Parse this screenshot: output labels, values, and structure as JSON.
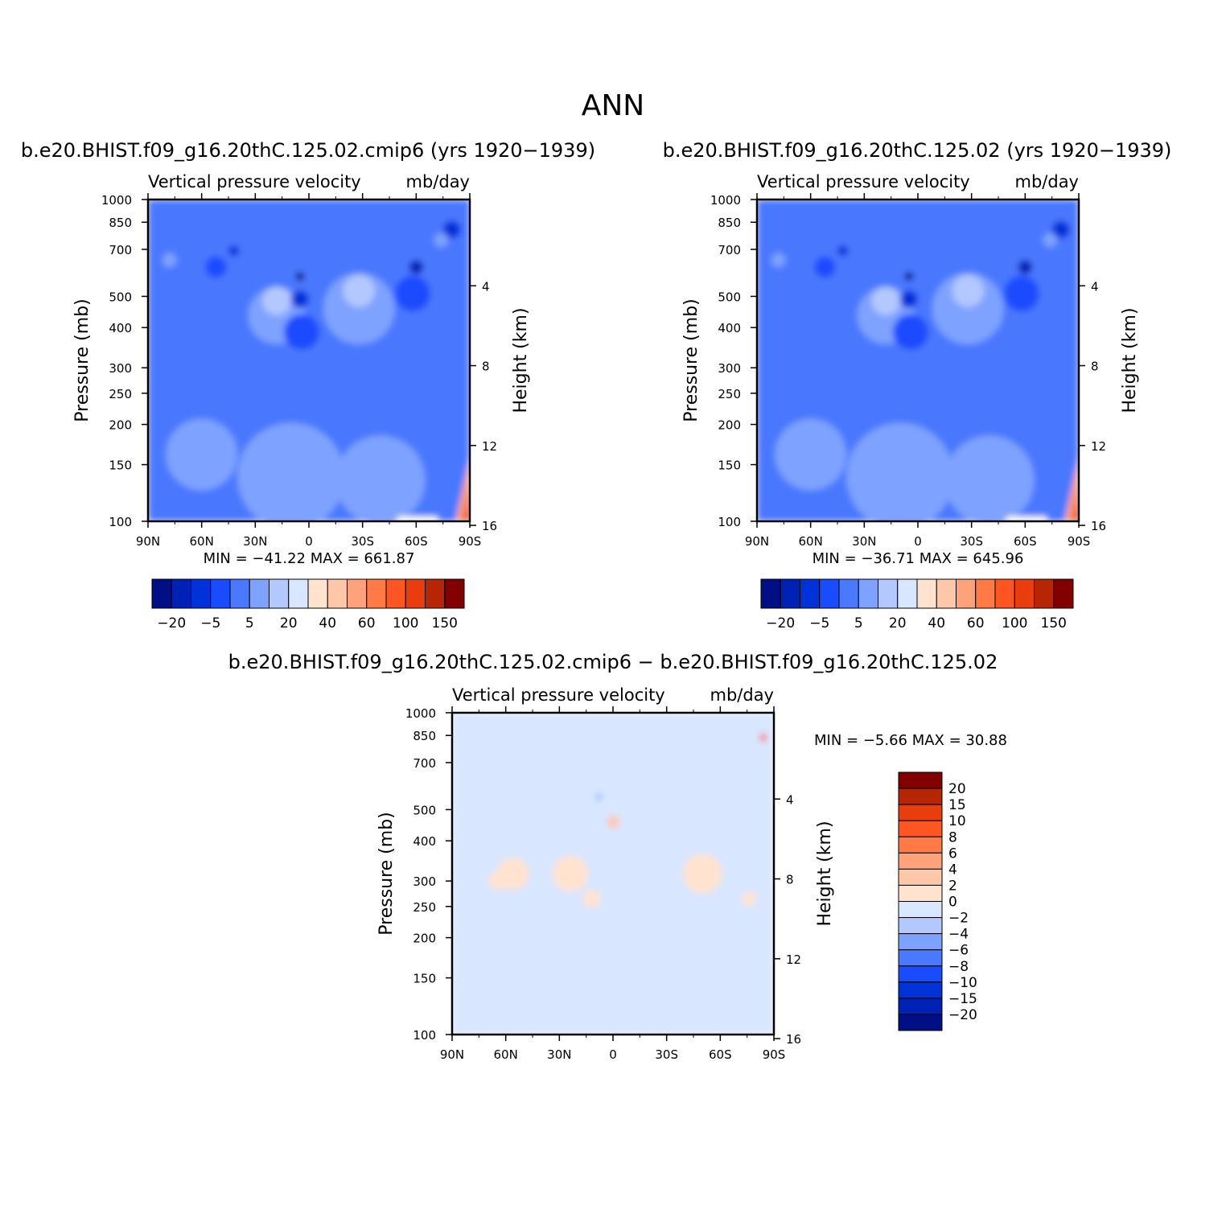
{
  "figure": {
    "title": "ANN"
  },
  "chart_data": [
    {
      "type": "heatmap",
      "title": "b.e20.BHIST.f09_g16.20thC.125.02.cmip6 (yrs 1920−1939)",
      "subtitle_left": "Vertical pressure velocity",
      "subtitle_right": "mb/day",
      "ylabel": "Pressure (mb)",
      "ylabel_right": "Height (km)",
      "x_ticks": [
        "90N",
        "60N",
        "30N",
        "0",
        "30S",
        "60S",
        "90S"
      ],
      "x_values": [
        90,
        60,
        30,
        0,
        -30,
        -60,
        -90
      ],
      "y_ticks": [
        100,
        150,
        200,
        250,
        300,
        400,
        500,
        700,
        850,
        1000
      ],
      "y_right_ticks": [
        16,
        12,
        8,
        4
      ],
      "yscale": "log",
      "ylim": [
        1000,
        100
      ],
      "stats": {
        "min_label": "MIN =",
        "min": "−41.22",
        "max_label": "MAX =",
        "max": "661.87"
      },
      "colorbar": {
        "orientation": "horizontal",
        "labels": [
          "−20",
          "−5",
          "5",
          "20",
          "40",
          "60",
          "100",
          "150"
        ],
        "colors": [
          "#000f85",
          "#0021b5",
          "#0032da",
          "#1a4cff",
          "#4a78ff",
          "#7ea2ff",
          "#b3c8ff",
          "#d8e6ff",
          "#ffe3cf",
          "#ffc7aa",
          "#ffa17a",
          "#ff7a44",
          "#ff5522",
          "#ea3d0e",
          "#b62604",
          "#820000"
        ]
      }
    },
    {
      "type": "heatmap",
      "title": "b.e20.BHIST.f09_g16.20thC.125.02 (yrs 1920−1939)",
      "subtitle_left": "Vertical pressure velocity",
      "subtitle_right": "mb/day",
      "ylabel": "Pressure (mb)",
      "ylabel_right": "Height (km)",
      "x_ticks": [
        "90N",
        "60N",
        "30N",
        "0",
        "30S",
        "60S",
        "90S"
      ],
      "x_values": [
        90,
        60,
        30,
        0,
        -30,
        -60,
        -90
      ],
      "y_ticks": [
        100,
        150,
        200,
        250,
        300,
        400,
        500,
        700,
        850,
        1000
      ],
      "y_right_ticks": [
        16,
        12,
        8,
        4
      ],
      "yscale": "log",
      "ylim": [
        1000,
        100
      ],
      "stats": {
        "min_label": "MIN =",
        "min": "−36.71",
        "max_label": "MAX =",
        "max": "645.96"
      },
      "colorbar": {
        "orientation": "horizontal",
        "labels": [
          "−20",
          "−5",
          "5",
          "20",
          "40",
          "60",
          "100",
          "150"
        ],
        "colors": [
          "#000f85",
          "#0021b5",
          "#0032da",
          "#1a4cff",
          "#4a78ff",
          "#7ea2ff",
          "#b3c8ff",
          "#d8e6ff",
          "#ffe3cf",
          "#ffc7aa",
          "#ffa17a",
          "#ff7a44",
          "#ff5522",
          "#ea3d0e",
          "#b62604",
          "#820000"
        ]
      }
    },
    {
      "type": "heatmap",
      "title": "b.e20.BHIST.f09_g16.20thC.125.02.cmip6 − b.e20.BHIST.f09_g16.20thC.125.02",
      "subtitle_left": "Vertical pressure velocity",
      "subtitle_right": "mb/day",
      "ylabel": "Pressure (mb)",
      "ylabel_right": "Height (km)",
      "x_ticks": [
        "90N",
        "60N",
        "30N",
        "0",
        "30S",
        "60S",
        "90S"
      ],
      "x_values": [
        90,
        60,
        30,
        0,
        -30,
        -60,
        -90
      ],
      "y_ticks": [
        100,
        150,
        200,
        250,
        300,
        400,
        500,
        700,
        850,
        1000
      ],
      "y_right_ticks": [
        16,
        12,
        8,
        4
      ],
      "yscale": "log",
      "ylim": [
        1000,
        100
      ],
      "stats": {
        "min_label": "MIN =",
        "min": "−5.66",
        "max_label": "MAX =",
        "max": "30.88"
      },
      "colorbar": {
        "orientation": "vertical",
        "labels": [
          "20",
          "15",
          "10",
          "8",
          "6",
          "4",
          "2",
          "0",
          "−2",
          "−4",
          "−6",
          "−8",
          "−10",
          "−15",
          "−20"
        ],
        "colors": [
          "#820000",
          "#b62604",
          "#ea3d0e",
          "#ff5522",
          "#ff7a44",
          "#ffa17a",
          "#ffc7aa",
          "#ffe3cf",
          "#d8e6ff",
          "#b3c8ff",
          "#7ea2ff",
          "#4a78ff",
          "#1a4cff",
          "#0032da",
          "#0021b5",
          "#000f85"
        ]
      }
    }
  ]
}
